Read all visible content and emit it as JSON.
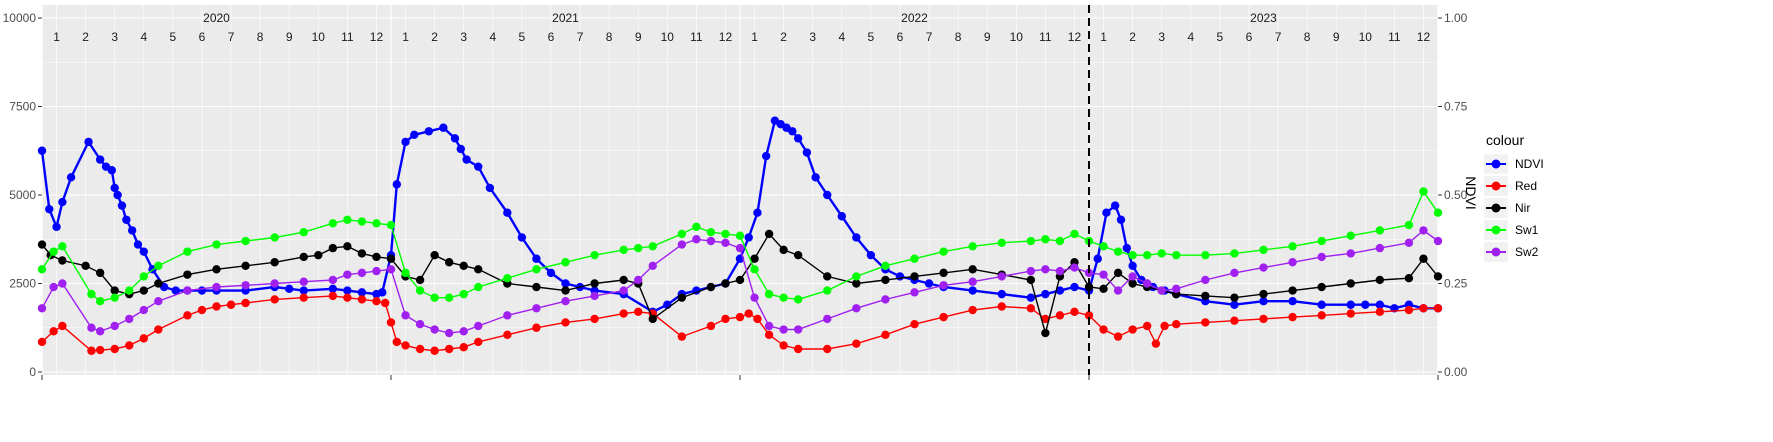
{
  "chart_data": {
    "type": "line",
    "title": "",
    "xlabel": "",
    "ylabel": "",
    "y2label": "NDVI",
    "ylim": [
      0,
      10000
    ],
    "y2lim": [
      0,
      1
    ],
    "yticks": [
      "0",
      "2500",
      "5000",
      "7500",
      "10000"
    ],
    "y2ticks": [
      "0.00",
      "0.25",
      "0.50",
      "0.75",
      "1.00"
    ],
    "years": [
      "2020",
      "2021",
      "2022",
      "2023"
    ],
    "months": [
      "1",
      "2",
      "3",
      "4",
      "5",
      "6",
      "7",
      "8",
      "9",
      "10",
      "11",
      "12"
    ],
    "x_unit": "months since Jan 2020",
    "vline_x": 36,
    "legend_title": "colour",
    "legend_position": "right",
    "grid": true,
    "series": [
      {
        "name": "NDVI",
        "color": "#0000ff",
        "axis": "right",
        "x": [
          0,
          0.25,
          0.5,
          0.7,
          1.0,
          1.6,
          2.0,
          2.2,
          2.4,
          2.5,
          2.6,
          2.75,
          2.9,
          3.1,
          3.3,
          3.5,
          3.8,
          4.2,
          4.6,
          5.0,
          5.5,
          6.0,
          7.0,
          8.0,
          8.5,
          9.0,
          10.0,
          10.5,
          11.0,
          11.5,
          11.7,
          12.0,
          12.2,
          12.5,
          12.8,
          13.3,
          13.8,
          14.2,
          14.4,
          14.6,
          15.0,
          15.4,
          16.0,
          16.5,
          17.0,
          17.5,
          18.0,
          18.5,
          19.0,
          20.0,
          21.0,
          21.5,
          22.0,
          22.5,
          23.0,
          23.5,
          24.0,
          24.3,
          24.6,
          24.9,
          25.2,
          25.4,
          25.6,
          25.8,
          26.0,
          26.3,
          26.6,
          27.0,
          27.5,
          28.0,
          28.5,
          29.0,
          29.5,
          30.0,
          30.5,
          31.0,
          32.0,
          33.0,
          34.0,
          34.5,
          35.0,
          35.5,
          36.0,
          36.3,
          36.6,
          36.9,
          37.1,
          37.3,
          37.5,
          37.8,
          38.2,
          38.6,
          39.0,
          40.0,
          41.0,
          42.0,
          43.0,
          44.0,
          45.0,
          45.5,
          46.0,
          46.5,
          47.0,
          47.5,
          48.0
        ],
        "values": [
          0.625,
          0.46,
          0.41,
          0.48,
          0.55,
          0.65,
          0.6,
          0.58,
          0.57,
          0.52,
          0.5,
          0.47,
          0.43,
          0.4,
          0.36,
          0.34,
          0.29,
          0.24,
          0.23,
          0.23,
          0.23,
          0.23,
          0.23,
          0.24,
          0.235,
          0.23,
          0.235,
          0.23,
          0.225,
          0.22,
          0.225,
          0.33,
          0.53,
          0.65,
          0.67,
          0.68,
          0.69,
          0.66,
          0.63,
          0.6,
          0.58,
          0.52,
          0.45,
          0.38,
          0.32,
          0.28,
          0.25,
          0.24,
          0.23,
          0.22,
          0.17,
          0.19,
          0.22,
          0.23,
          0.24,
          0.25,
          0.32,
          0.38,
          0.45,
          0.61,
          0.71,
          0.7,
          0.69,
          0.68,
          0.66,
          0.62,
          0.55,
          0.5,
          0.44,
          0.38,
          0.33,
          0.29,
          0.27,
          0.26,
          0.25,
          0.24,
          0.23,
          0.22,
          0.21,
          0.22,
          0.23,
          0.24,
          0.23,
          0.32,
          0.45,
          0.47,
          0.43,
          0.35,
          0.3,
          0.26,
          0.24,
          0.23,
          0.22,
          0.2,
          0.19,
          0.2,
          0.2,
          0.19,
          0.19,
          0.19,
          0.19,
          0.18,
          0.19,
          0.18,
          0.18
        ]
      },
      {
        "name": "Red",
        "color": "#ff0000",
        "axis": "left",
        "x": [
          0,
          0.4,
          0.7,
          1.7,
          2.0,
          2.5,
          3.0,
          3.5,
          4.0,
          5.0,
          5.5,
          6.0,
          6.5,
          7.0,
          8.0,
          9.0,
          10.0,
          10.5,
          11.0,
          11.5,
          11.8,
          12.0,
          12.2,
          12.5,
          13.0,
          13.5,
          14.0,
          14.5,
          15.0,
          16.0,
          17.0,
          18.0,
          19.0,
          20.0,
          20.5,
          21.0,
          22.0,
          23.0,
          23.5,
          24.0,
          24.3,
          24.6,
          25.0,
          25.5,
          26.0,
          27.0,
          28.0,
          29.0,
          30.0,
          31.0,
          32.0,
          33.0,
          34.0,
          34.5,
          35.0,
          35.5,
          36.0,
          36.5,
          37.0,
          37.5,
          38.0,
          38.3,
          38.6,
          39.0,
          40.0,
          41.0,
          42.0,
          43.0,
          44.0,
          45.0,
          46.0,
          47.0,
          47.5,
          48.0
        ],
        "values": [
          850,
          1150,
          1300,
          600,
          620,
          650,
          750,
          950,
          1200,
          1600,
          1750,
          1850,
          1900,
          1950,
          2050,
          2100,
          2150,
          2100,
          2050,
          2000,
          1950,
          1400,
          850,
          750,
          650,
          600,
          650,
          700,
          850,
          1050,
          1250,
          1400,
          1500,
          1650,
          1700,
          1650,
          1000,
          1300,
          1500,
          1550,
          1650,
          1500,
          1050,
          750,
          650,
          650,
          800,
          1050,
          1350,
          1550,
          1750,
          1850,
          1800,
          1500,
          1600,
          1700,
          1600,
          1200,
          1000,
          1200,
          1300,
          800,
          1300,
          1350,
          1400,
          1450,
          1500,
          1550,
          1600,
          1650,
          1700,
          1750,
          1800,
          1800
        ]
      },
      {
        "name": "Nir",
        "color": "#000000",
        "axis": "left",
        "x": [
          0,
          0.3,
          0.7,
          1.5,
          2.0,
          2.5,
          3.0,
          3.5,
          4.0,
          5.0,
          6.0,
          7.0,
          8.0,
          9.0,
          9.5,
          10.0,
          10.5,
          11.0,
          11.5,
          12.0,
          12.5,
          13.0,
          13.5,
          14.0,
          14.5,
          15.0,
          16.0,
          17.0,
          18.0,
          19.0,
          20.0,
          20.5,
          21.0,
          22.0,
          23.0,
          23.5,
          24.0,
          24.5,
          25.0,
          25.5,
          26.0,
          27.0,
          28.0,
          29.0,
          30.0,
          31.0,
          32.0,
          33.0,
          34.0,
          34.5,
          35.0,
          35.5,
          36.0,
          36.5,
          37.0,
          37.5,
          38.0,
          38.5,
          39.0,
          40.0,
          41.0,
          42.0,
          43.0,
          44.0,
          45.0,
          46.0,
          47.0,
          47.5,
          48.0
        ],
        "values": [
          3600,
          3300,
          3150,
          3000,
          2800,
          2300,
          2200,
          2300,
          2500,
          2750,
          2900,
          3000,
          3100,
          3250,
          3300,
          3500,
          3550,
          3350,
          3250,
          3200,
          2700,
          2600,
          3300,
          3100,
          3000,
          2900,
          2500,
          2400,
          2300,
          2500,
          2600,
          2500,
          1500,
          2100,
          2400,
          2500,
          2600,
          3200,
          3900,
          3450,
          3300,
          2700,
          2500,
          2600,
          2700,
          2800,
          2900,
          2750,
          2600,
          1100,
          2700,
          3100,
          2400,
          2350,
          2800,
          2500,
          2400,
          2300,
          2200,
          2150,
          2100,
          2200,
          2300,
          2400,
          2500,
          2600,
          2650,
          3200,
          2700
        ]
      },
      {
        "name": "Sw1",
        "color": "#00ff00",
        "axis": "left",
        "x": [
          0,
          0.4,
          0.7,
          1.7,
          2.0,
          2.5,
          3.0,
          3.5,
          4.0,
          5.0,
          6.0,
          7.0,
          8.0,
          9.0,
          10.0,
          10.5,
          11.0,
          11.5,
          12.0,
          12.5,
          13.0,
          13.5,
          14.0,
          14.5,
          15.0,
          16.0,
          17.0,
          18.0,
          19.0,
          20.0,
          20.5,
          21.0,
          22.0,
          22.5,
          23.0,
          23.5,
          24.0,
          24.5,
          25.0,
          25.5,
          26.0,
          27.0,
          28.0,
          29.0,
          30.0,
          31.0,
          32.0,
          33.0,
          34.0,
          34.5,
          35.0,
          35.5,
          36.0,
          36.5,
          37.0,
          37.5,
          38.0,
          38.5,
          39.0,
          40.0,
          41.0,
          42.0,
          43.0,
          44.0,
          45.0,
          46.0,
          47.0,
          47.5,
          48.0
        ],
        "values": [
          2900,
          3400,
          3550,
          2200,
          2000,
          2100,
          2300,
          2700,
          3000,
          3400,
          3600,
          3700,
          3800,
          3950,
          4200,
          4300,
          4250,
          4200,
          4150,
          2800,
          2300,
          2100,
          2100,
          2200,
          2400,
          2650,
          2900,
          3100,
          3300,
          3450,
          3500,
          3550,
          3900,
          4100,
          3950,
          3900,
          3850,
          2900,
          2200,
          2100,
          2050,
          2300,
          2700,
          3000,
          3200,
          3400,
          3550,
          3650,
          3700,
          3750,
          3700,
          3900,
          3700,
          3550,
          3400,
          3300,
          3300,
          3350,
          3300,
          3300,
          3350,
          3450,
          3550,
          3700,
          3850,
          4000,
          4150,
          5100,
          4500
        ]
      },
      {
        "name": "Sw2",
        "color": "#a020f0",
        "axis": "left",
        "x": [
          0,
          0.4,
          0.7,
          1.7,
          2.0,
          2.5,
          3.0,
          3.5,
          4.0,
          5.0,
          6.0,
          7.0,
          8.0,
          9.0,
          10.0,
          10.5,
          11.0,
          11.5,
          12.0,
          12.5,
          13.0,
          13.5,
          14.0,
          14.5,
          15.0,
          16.0,
          17.0,
          18.0,
          19.0,
          20.0,
          20.5,
          21.0,
          22.0,
          22.5,
          23.0,
          23.5,
          24.0,
          24.5,
          25.0,
          25.5,
          26.0,
          27.0,
          28.0,
          29.0,
          30.0,
          31.0,
          32.0,
          33.0,
          34.0,
          34.5,
          35.0,
          35.5,
          36.0,
          36.5,
          37.0,
          37.5,
          38.0,
          38.5,
          39.0,
          40.0,
          41.0,
          42.0,
          43.0,
          44.0,
          45.0,
          46.0,
          47.0,
          47.5,
          48.0
        ],
        "values": [
          1800,
          2400,
          2500,
          1250,
          1150,
          1300,
          1500,
          1750,
          2000,
          2300,
          2400,
          2450,
          2500,
          2550,
          2600,
          2750,
          2800,
          2850,
          2900,
          1600,
          1350,
          1200,
          1100,
          1150,
          1300,
          1600,
          1800,
          2000,
          2150,
          2300,
          2600,
          3000,
          3600,
          3750,
          3700,
          3650,
          3500,
          2100,
          1300,
          1200,
          1200,
          1500,
          1800,
          2050,
          2250,
          2450,
          2550,
          2700,
          2850,
          2900,
          2850,
          2950,
          2800,
          2750,
          2300,
          2700,
          2500,
          2300,
          2350,
          2600,
          2800,
          2950,
          3100,
          3250,
          3350,
          3500,
          3650,
          4000,
          3700
        ]
      }
    ]
  }
}
